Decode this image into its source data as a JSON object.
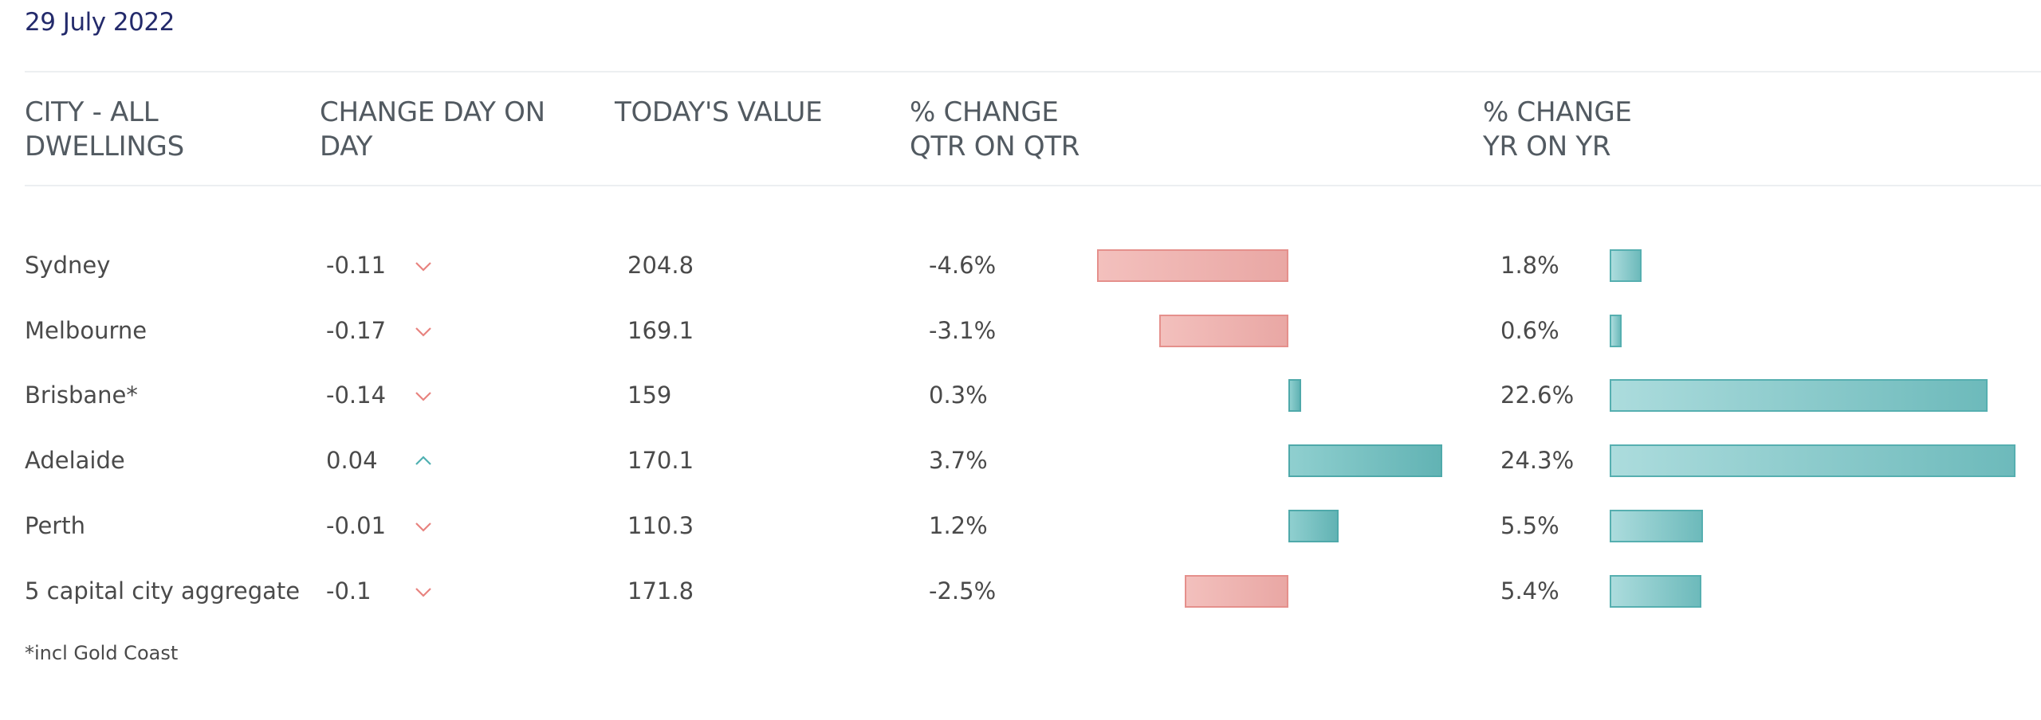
{
  "date": "29 July 2022",
  "headers": {
    "city": [
      "CITY - ALL",
      "DWELLINGS"
    ],
    "change_day": [
      "CHANGE DAY ON",
      "DAY"
    ],
    "todays_value": [
      "TODAY'S VALUE"
    ],
    "change_qtr": [
      "% CHANGE",
      "QTR ON QTR"
    ],
    "change_yr": [
      "% CHANGE",
      "YR ON YR"
    ]
  },
  "rows": [
    {
      "city": "Sydney",
      "day_change": "-0.11",
      "direction": "down",
      "todays_value": "204.8",
      "qtr_change": "-4.6%",
      "qtr_value": -4.6,
      "yr_change": "1.8%",
      "yr_value": 1.8
    },
    {
      "city": "Melbourne",
      "day_change": "-0.17",
      "direction": "down",
      "todays_value": "169.1",
      "qtr_change": "-3.1%",
      "qtr_value": -3.1,
      "yr_change": "0.6%",
      "yr_value": 0.6
    },
    {
      "city": "Brisbane*",
      "day_change": "-0.14",
      "direction": "down",
      "todays_value": "159",
      "qtr_change": "0.3%",
      "qtr_value": 0.3,
      "yr_change": "22.6%",
      "yr_value": 22.6
    },
    {
      "city": "Adelaide",
      "day_change": "0.04",
      "direction": "up",
      "todays_value": "170.1",
      "qtr_change": "3.7%",
      "qtr_value": 3.7,
      "yr_change": "24.3%",
      "yr_value": 24.3
    },
    {
      "city": "Perth",
      "day_change": "-0.01",
      "direction": "down",
      "todays_value": "110.3",
      "qtr_change": "1.2%",
      "qtr_value": 1.2,
      "yr_change": "5.5%",
      "yr_value": 5.5
    },
    {
      "city": "5 capital city aggregate",
      "day_change": "-0.1",
      "direction": "down",
      "todays_value": "171.8",
      "qtr_change": "-2.5%",
      "qtr_value": -2.5,
      "yr_change": "5.4%",
      "yr_value": 5.4
    }
  ],
  "colors": {
    "down_arrow": "#e8837f",
    "up_arrow": "#4fb0b1",
    "date_text": "#232a6b"
  },
  "footnote": "*incl Gold Coast"
}
